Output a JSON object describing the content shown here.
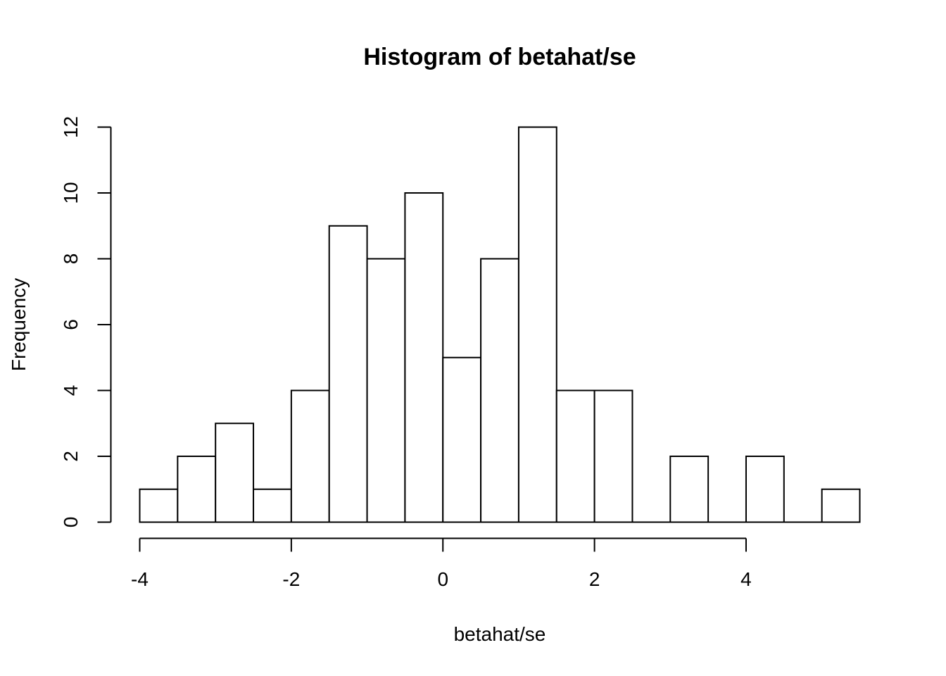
{
  "chart_data": {
    "type": "bar",
    "title": "Histogram of betahat/se",
    "xlabel": "betahat/se",
    "ylabel": "Frequency",
    "bin_edges": [
      -4,
      -3.5,
      -3,
      -2.5,
      -2,
      -1.5,
      -1,
      -0.5,
      0,
      0.5,
      1,
      1.5,
      2,
      2.5,
      3,
      3.5,
      4,
      4.5,
      5,
      5.5
    ],
    "values": [
      1,
      2,
      3,
      1,
      4,
      9,
      8,
      10,
      5,
      8,
      12,
      4,
      4,
      0,
      2,
      0,
      2,
      0,
      1
    ],
    "xlim": [
      -4,
      5.5
    ],
    "ylim": [
      0,
      12
    ],
    "x_ticks": [
      -4,
      -2,
      0,
      2,
      4
    ],
    "x_tick_labels": [
      "-4",
      "-2",
      "0",
      "2",
      "4"
    ],
    "y_ticks": [
      0,
      2,
      4,
      6,
      8,
      10,
      12
    ],
    "y_tick_labels": [
      "0",
      "2",
      "4",
      "6",
      "8",
      "10",
      "12"
    ],
    "grid": false,
    "bar_fill": "#ffffff",
    "bar_stroke": "#000000"
  }
}
